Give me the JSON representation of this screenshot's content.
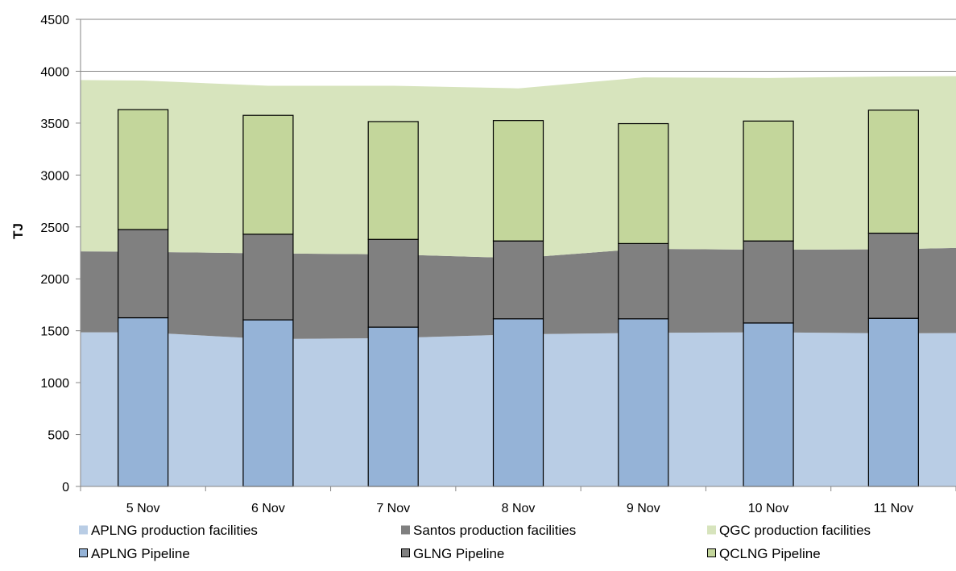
{
  "chart_data": {
    "type": "bar",
    "title": "",
    "xlabel": "",
    "ylabel": "TJ",
    "ylim": [
      0,
      4500
    ],
    "y_ticks": [
      "0",
      "500",
      "1000",
      "1500",
      "2000",
      "2500",
      "3000",
      "3500",
      "4000",
      "4500"
    ],
    "grid": "horizontal-major",
    "legend_placement": "bottom",
    "categories": [
      "5 Nov",
      "6 Nov",
      "7 Nov",
      "8 Nov",
      "9 Nov",
      "10 Nov",
      "11 Nov"
    ],
    "area_series": [
      {
        "name": "APLNG production facilities",
        "color": "#b9cde5",
        "x_edges": [
          "4.5 Nov",
          "5 Nov",
          "6 Nov",
          "7 Nov",
          "8 Nov",
          "9 Nov",
          "10 Nov",
          "11 Nov",
          "11.5 Nov"
        ],
        "values": [
          1485,
          1485,
          1420,
          1430,
          1465,
          1480,
          1485,
          1475,
          1478
        ]
      },
      {
        "name": "Santos production facilities",
        "color": "#808080",
        "x_edges": [
          "4.5 Nov",
          "5 Nov",
          "6 Nov",
          "7 Nov",
          "8 Nov",
          "9 Nov",
          "10 Nov",
          "11 Nov",
          "11.5 Nov"
        ],
        "values": [
          780,
          775,
          825,
          805,
          735,
          810,
          795,
          810,
          820
        ]
      },
      {
        "name": "QGC production facilities",
        "color": "#d7e4bd",
        "x_edges": [
          "4.5 Nov",
          "5 Nov",
          "6 Nov",
          "7 Nov",
          "8 Nov",
          "9 Nov",
          "10 Nov",
          "11 Nov",
          "11.5 Nov"
        ],
        "values": [
          1650,
          1650,
          1615,
          1625,
          1635,
          1650,
          1655,
          1665,
          1655
        ]
      }
    ],
    "series": [
      {
        "name": "APLNG Pipeline",
        "color": "#95b3d7",
        "values": [
          1625,
          1605,
          1535,
          1615,
          1615,
          1575,
          1620
        ]
      },
      {
        "name": "GLNG Pipeline",
        "color": "#808080",
        "values": [
          850,
          825,
          845,
          750,
          725,
          790,
          820
        ]
      },
      {
        "name": "QCLNG Pipeline",
        "color": "#c3d69b",
        "values": [
          1155,
          1145,
          1135,
          1160,
          1155,
          1155,
          1185
        ]
      }
    ],
    "legend": [
      {
        "label": "APLNG production facilities",
        "color": "#b9cde5",
        "swatch": "fill"
      },
      {
        "label": "Santos production facilities",
        "color": "#808080",
        "swatch": "fill"
      },
      {
        "label": "QGC production facilities",
        "color": "#d7e4bd",
        "swatch": "fill"
      },
      {
        "label": "APLNG Pipeline",
        "color": "#95b3d7",
        "swatch": "outlined"
      },
      {
        "label": "GLNG Pipeline",
        "color": "#808080",
        "swatch": "outlined"
      },
      {
        "label": "QCLNG Pipeline",
        "color": "#c3d69b",
        "swatch": "outlined"
      }
    ]
  }
}
